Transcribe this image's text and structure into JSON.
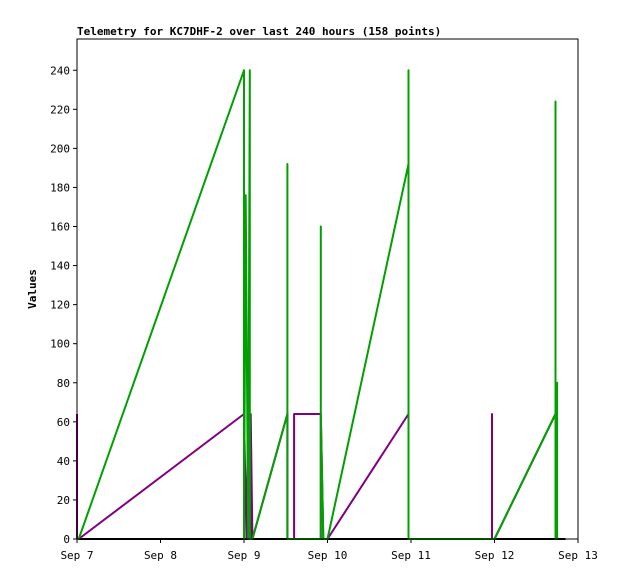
{
  "chart_data": {
    "type": "line",
    "title": "Telemetry for KC7DHF-2 over last 240 hours (158 points)",
    "xlabel": "",
    "ylabel": "Values",
    "x_ticks": [
      "Sep 7",
      "Sep 8",
      "Sep 9",
      "Sep 10",
      "Sep 11",
      "Sep 12",
      "Sep 13"
    ],
    "y_ticks": [
      0,
      20,
      40,
      60,
      80,
      100,
      120,
      140,
      160,
      180,
      200,
      220,
      240
    ],
    "xlim": [
      0,
      6
    ],
    "ylim": [
      0,
      256
    ],
    "grid": false,
    "legend": "none",
    "series": [
      {
        "color": "#000000",
        "points": [
          [
            0.0,
            0
          ],
          [
            5.85,
            0
          ]
        ]
      },
      {
        "color": "#800080",
        "points": [
          [
            0.0,
            64
          ],
          [
            0.0,
            0
          ],
          [
            0.02,
            0
          ],
          [
            2.0,
            64
          ],
          [
            2.0,
            0
          ],
          [
            2.0,
            64
          ],
          [
            2.03,
            0
          ],
          [
            2.05,
            64
          ],
          [
            2.05,
            30
          ],
          [
            2.07,
            54
          ],
          [
            2.08,
            0
          ],
          [
            2.08,
            64
          ],
          [
            2.1,
            0
          ],
          [
            2.52,
            64
          ],
          [
            2.52,
            0
          ],
          [
            2.6,
            0
          ],
          [
            2.6,
            64
          ],
          [
            2.92,
            64
          ],
          [
            2.92,
            0
          ],
          [
            2.92,
            64
          ],
          [
            2.95,
            0
          ],
          [
            3.0,
            0
          ],
          [
            3.97,
            64
          ],
          [
            3.97,
            0
          ],
          [
            4.97,
            0
          ],
          [
            4.97,
            64
          ],
          [
            4.97,
            0
          ],
          [
            5.0,
            0
          ],
          [
            5.73,
            64
          ],
          [
            5.73,
            0
          ],
          [
            5.73,
            64
          ],
          [
            5.75,
            0
          ]
        ]
      },
      {
        "color": "#00a000",
        "points": [
          [
            0.0,
            0
          ],
          [
            0.02,
            0
          ],
          [
            2.0,
            240
          ],
          [
            2.0,
            0
          ],
          [
            2.02,
            176
          ],
          [
            2.05,
            0
          ],
          [
            2.07,
            240
          ],
          [
            2.07,
            0
          ],
          [
            2.1,
            0
          ],
          [
            2.52,
            64
          ],
          [
            2.52,
            192
          ],
          [
            2.52,
            0
          ],
          [
            2.6,
            0
          ],
          [
            2.92,
            0
          ],
          [
            2.92,
            80
          ],
          [
            2.92,
            160
          ],
          [
            2.92,
            64
          ],
          [
            2.95,
            0
          ],
          [
            3.0,
            0
          ],
          [
            3.97,
            192
          ],
          [
            3.97,
            240
          ],
          [
            3.97,
            0
          ],
          [
            4.97,
            0
          ],
          [
            5.0,
            0
          ],
          [
            5.73,
            64
          ],
          [
            5.73,
            224
          ],
          [
            5.73,
            0
          ],
          [
            5.75,
            80
          ],
          [
            5.75,
            0
          ]
        ]
      }
    ]
  }
}
